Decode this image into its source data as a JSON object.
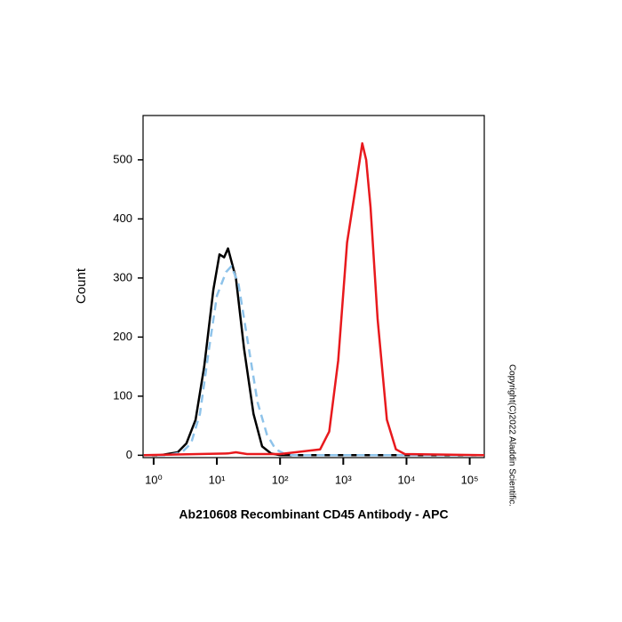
{
  "chart_data": {
    "type": "line",
    "x_label": "Ab210608 Recombinant CD45 Antibody - APC",
    "y_label": "Count",
    "copyright": "Copyright(C)2022 Aladdin Scientific.",
    "log_x": true,
    "xlim": [
      0.68,
      170000
    ],
    "ylim": [
      -4,
      575
    ],
    "xticks": [
      {
        "value": 1,
        "label": "10⁰"
      },
      {
        "value": 10,
        "label": "10¹"
      },
      {
        "value": 100,
        "label": "10²"
      },
      {
        "value": 1000,
        "label": "10³"
      },
      {
        "value": 10000,
        "label": "10⁴"
      },
      {
        "value": 100000,
        "label": "10⁵"
      }
    ],
    "yticks": [
      0,
      100,
      200,
      300,
      400,
      500
    ],
    "series": [
      {
        "color": "#000000",
        "line_style": "solid",
        "x": [
          0.7,
          1.25,
          2.4,
          3.3,
          4.6,
          6.3,
          8.8,
          11,
          13,
          15,
          20,
          27,
          38,
          52,
          72,
          100,
          170000
        ],
        "values": [
          0,
          0,
          5,
          20,
          60,
          150,
          280,
          340,
          335,
          350,
          300,
          180,
          70,
          15,
          3,
          0,
          0
        ]
      },
      {
        "color": "#8ec3ea",
        "line_style": "dashed",
        "x": [
          0.7,
          1.7,
          2.8,
          3.9,
          5.4,
          7.5,
          10,
          14,
          17,
          22,
          30,
          44,
          62,
          85,
          120,
          160,
          170000
        ],
        "values": [
          0,
          0,
          5,
          20,
          70,
          180,
          270,
          310,
          320,
          290,
          200,
          90,
          35,
          10,
          2,
          0,
          0
        ]
      },
      {
        "color": "#e8191d",
        "line_style": "solid",
        "x": [
          0.7,
          5,
          15,
          20,
          30,
          100,
          430,
          600,
          830,
          1150,
          1600,
          2000,
          2300,
          2700,
          3500,
          4900,
          6800,
          9400,
          170000
        ],
        "values": [
          0,
          2,
          3,
          5,
          2,
          2,
          10,
          40,
          160,
          360,
          460,
          528,
          500,
          420,
          230,
          60,
          10,
          2,
          0
        ]
      }
    ]
  }
}
